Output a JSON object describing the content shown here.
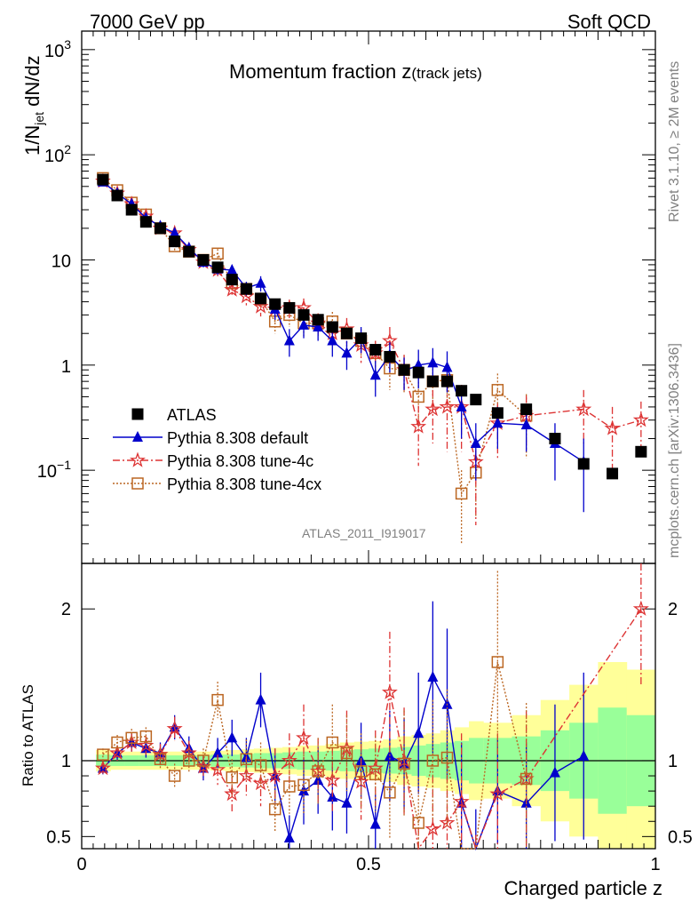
{
  "header": {
    "left": "7000 GeV pp",
    "right": "Soft QCD"
  },
  "side_labels": {
    "rivet": "Rivet 3.1.10, ≥ 2M events",
    "mcplots": "mcplots.cern.ch [arXiv:1306.3436]"
  },
  "plot_title": {
    "main": "Momentum fraction z",
    "sub": "(track jets)"
  },
  "analysis_id": "ATLAS_2011_I919017",
  "colors": {
    "atlas": "#000000",
    "default": "#0000cc",
    "tune4c": "#dd3333",
    "tune4cx": "#bb6622",
    "band_inner": "#99ff99",
    "band_outer": "#ffff99"
  },
  "chart_data": [
    {
      "type": "scatter",
      "name": "main",
      "ylabel": "1/N_jet dN/dz",
      "yscale": "log",
      "ylim": [
        0.013,
        1500
      ],
      "xlim": [
        0,
        1
      ],
      "y_ticks": [
        "10^-1",
        "1",
        "10",
        "10^2",
        "10^3"
      ],
      "legend_position": "bottom-left",
      "series": [
        {
          "name": "ATLAS",
          "marker": "square",
          "x": [
            0.037,
            0.062,
            0.087,
            0.112,
            0.137,
            0.162,
            0.187,
            0.212,
            0.237,
            0.262,
            0.287,
            0.312,
            0.337,
            0.362,
            0.387,
            0.412,
            0.437,
            0.462,
            0.487,
            0.512,
            0.537,
            0.562,
            0.587,
            0.612,
            0.637,
            0.662,
            0.687,
            0.725,
            0.775,
            0.825,
            0.875,
            0.925,
            0.975
          ],
          "y": [
            58,
            41,
            30,
            23,
            20,
            15,
            12,
            10,
            8.5,
            6.5,
            5.3,
            4.3,
            3.8,
            3.5,
            3.0,
            2.7,
            2.3,
            2.0,
            1.8,
            1.4,
            1.2,
            0.9,
            0.85,
            0.7,
            0.7,
            0.57,
            0.47,
            0.35,
            0.38,
            0.2,
            0.115,
            0.093,
            0.15
          ]
        },
        {
          "name": "Pythia 8.308 default",
          "marker": "triangle",
          "x": [
            0.037,
            0.062,
            0.087,
            0.112,
            0.137,
            0.162,
            0.187,
            0.212,
            0.237,
            0.262,
            0.287,
            0.312,
            0.337,
            0.362,
            0.387,
            0.412,
            0.437,
            0.462,
            0.487,
            0.512,
            0.537,
            0.562,
            0.587,
            0.612,
            0.637,
            0.662,
            0.687,
            0.725,
            0.775,
            0.825,
            0.875
          ],
          "y": [
            55,
            43,
            34,
            25,
            21,
            18,
            13,
            9.5,
            8.2,
            8.0,
            5.4,
            6.0,
            3.4,
            1.7,
            2.4,
            2.3,
            1.7,
            1.3,
            1.8,
            0.8,
            1.25,
            0.88,
            1.0,
            1.05,
            0.95,
            0.4,
            0.18,
            0.28,
            0.27,
            0.18,
            0.12
          ],
          "err": [
            3,
            2,
            2,
            1.5,
            1.5,
            1.5,
            1,
            1,
            1,
            1,
            0.8,
            1,
            0.7,
            0.5,
            0.6,
            0.6,
            0.5,
            0.4,
            0.5,
            0.3,
            0.4,
            0.3,
            0.4,
            0.4,
            0.4,
            0.2,
            0.1,
            0.12,
            0.12,
            0.1,
            0.08
          ]
        },
        {
          "name": "Pythia 8.308 tune-4c",
          "marker": "star",
          "x": [
            0.037,
            0.062,
            0.087,
            0.112,
            0.137,
            0.162,
            0.187,
            0.212,
            0.237,
            0.262,
            0.287,
            0.312,
            0.337,
            0.362,
            0.387,
            0.412,
            0.437,
            0.462,
            0.487,
            0.512,
            0.537,
            0.562,
            0.587,
            0.612,
            0.637,
            0.662,
            0.687,
            0.725,
            0.775,
            0.875,
            0.925,
            0.975
          ],
          "y": [
            56,
            43,
            34,
            26,
            20,
            18,
            12.5,
            9.5,
            8.0,
            5.2,
            4.5,
            3.6,
            3.4,
            3.5,
            3.5,
            2.5,
            2.0,
            2.2,
            1.55,
            1.3,
            1.7,
            0.9,
            0.26,
            0.38,
            0.4,
            0.4,
            0.12,
            0.28,
            0.33,
            0.38,
            0.25,
            0.3
          ],
          "err": [
            3,
            2,
            2,
            1.5,
            1.5,
            1.5,
            1,
            1,
            1,
            0.8,
            0.8,
            0.7,
            0.7,
            0.7,
            0.8,
            0.6,
            0.5,
            0.6,
            0.5,
            0.4,
            0.6,
            0.35,
            0.15,
            0.2,
            0.25,
            0.25,
            0.09,
            0.15,
            0.18,
            0.2,
            0.15,
            0.15
          ]
        },
        {
          "name": "Pythia 8.308 tune-4cx",
          "marker": "open-square",
          "x": [
            0.037,
            0.062,
            0.087,
            0.112,
            0.137,
            0.162,
            0.187,
            0.212,
            0.237,
            0.262,
            0.287,
            0.312,
            0.337,
            0.362,
            0.387,
            0.412,
            0.437,
            0.462,
            0.487,
            0.512,
            0.537,
            0.562,
            0.587,
            0.612,
            0.637,
            0.662,
            0.687,
            0.725,
            0.775
          ],
          "y": [
            60,
            46,
            35,
            27,
            20,
            13.5,
            12,
            10,
            11.5,
            6.0,
            5.3,
            4.2,
            2.6,
            3.0,
            2.5,
            2.5,
            2.6,
            2.0,
            1.7,
            1.3,
            0.93,
            0.9,
            0.5,
            0.7,
            0.72,
            0.06,
            0.095,
            0.58,
            0.33
          ],
          "err": [
            3,
            2,
            2,
            1.5,
            1.5,
            1.5,
            1,
            1,
            1.2,
            0.8,
            0.8,
            0.7,
            0.6,
            0.7,
            0.6,
            0.6,
            0.6,
            0.5,
            0.5,
            0.4,
            0.35,
            0.35,
            0.25,
            0.3,
            0.3,
            0.04,
            0.06,
            0.25,
            0.2
          ]
        }
      ]
    },
    {
      "type": "line",
      "name": "ratio",
      "ylabel": "Ratio to ATLAS",
      "xlabel": "Charged particle z",
      "xlim": [
        0,
        1
      ],
      "ylim": [
        0.42,
        2.3
      ],
      "y_ticks": [
        "0.5",
        "1",
        "2"
      ],
      "x_ticks": [
        "0",
        "0.5",
        "1"
      ],
      "band_x_edges": [
        0.025,
        0.05,
        0.075,
        0.1,
        0.125,
        0.15,
        0.175,
        0.2,
        0.225,
        0.25,
        0.275,
        0.3,
        0.325,
        0.35,
        0.375,
        0.4,
        0.425,
        0.45,
        0.475,
        0.5,
        0.525,
        0.55,
        0.575,
        0.6,
        0.625,
        0.65,
        0.675,
        0.7,
        0.75,
        0.8,
        0.85,
        0.9,
        0.95,
        1.0
      ],
      "band_inner": [
        0.04,
        0.035,
        0.035,
        0.035,
        0.035,
        0.035,
        0.035,
        0.035,
        0.04,
        0.04,
        0.045,
        0.05,
        0.05,
        0.055,
        0.06,
        0.06,
        0.065,
        0.07,
        0.075,
        0.08,
        0.085,
        0.09,
        0.1,
        0.11,
        0.12,
        0.13,
        0.15,
        0.15,
        0.16,
        0.2,
        0.25,
        0.35,
        0.3
      ],
      "band_outer": [
        0.07,
        0.06,
        0.06,
        0.06,
        0.06,
        0.06,
        0.06,
        0.06,
        0.065,
        0.07,
        0.075,
        0.08,
        0.085,
        0.09,
        0.1,
        0.1,
        0.11,
        0.12,
        0.125,
        0.13,
        0.14,
        0.16,
        0.17,
        0.18,
        0.2,
        0.22,
        0.26,
        0.25,
        0.3,
        0.4,
        0.5,
        0.65,
        0.6
      ],
      "series": [
        {
          "name": "Pythia 8.308 default",
          "x": [
            0.037,
            0.062,
            0.087,
            0.112,
            0.137,
            0.162,
            0.187,
            0.212,
            0.237,
            0.262,
            0.287,
            0.312,
            0.337,
            0.362,
            0.387,
            0.412,
            0.437,
            0.462,
            0.487,
            0.512,
            0.537,
            0.562,
            0.587,
            0.612,
            0.637,
            0.662,
            0.687,
            0.725,
            0.775,
            0.825,
            0.875
          ],
          "y": [
            0.95,
            1.05,
            1.12,
            1.08,
            1.05,
            1.22,
            1.08,
            0.95,
            1.05,
            1.15,
            1.02,
            1.4,
            0.9,
            0.49,
            0.8,
            0.87,
            0.76,
            0.72,
            1.0,
            0.58,
            1.03,
            0.98,
            1.18,
            1.55,
            1.37,
            0.72,
            0.38,
            0.8,
            0.72,
            0.92,
            1.03
          ],
          "err": [
            0.04,
            0.05,
            0.06,
            0.06,
            0.07,
            0.08,
            0.08,
            0.08,
            0.1,
            0.12,
            0.13,
            0.18,
            0.18,
            0.15,
            0.22,
            0.22,
            0.22,
            0.2,
            0.25,
            0.2,
            0.3,
            0.3,
            0.4,
            0.5,
            0.5,
            0.4,
            0.3,
            0.35,
            0.4,
            0.45,
            0.55
          ]
        },
        {
          "name": "Pythia 8.308 tune-4c",
          "x": [
            0.037,
            0.062,
            0.087,
            0.112,
            0.137,
            0.162,
            0.187,
            0.212,
            0.237,
            0.262,
            0.287,
            0.312,
            0.337,
            0.362,
            0.387,
            0.412,
            0.437,
            0.462,
            0.487,
            0.512,
            0.537,
            0.562,
            0.587,
            0.612,
            0.637,
            0.662,
            0.687,
            0.725,
            0.775,
            0.975
          ],
          "y": [
            0.95,
            1.05,
            1.12,
            1.1,
            1.04,
            1.21,
            1.05,
            0.96,
            0.94,
            0.78,
            0.9,
            0.85,
            0.9,
            1.0,
            1.15,
            0.93,
            0.87,
            1.08,
            0.86,
            0.95,
            1.45,
            1.0,
            0.31,
            0.55,
            0.59,
            0.73,
            0.26,
            0.78,
            0.88,
            2.0
          ],
          "err": [
            0.04,
            0.05,
            0.06,
            0.06,
            0.07,
            0.08,
            0.08,
            0.08,
            0.1,
            0.12,
            0.13,
            0.15,
            0.18,
            0.18,
            0.22,
            0.22,
            0.22,
            0.25,
            0.25,
            0.25,
            0.4,
            0.35,
            0.25,
            0.35,
            0.4,
            0.45,
            0.25,
            0.4,
            0.45,
            0.5
          ]
        },
        {
          "name": "Pythia 8.308 tune-4cx",
          "x": [
            0.037,
            0.062,
            0.087,
            0.112,
            0.137,
            0.162,
            0.187,
            0.212,
            0.237,
            0.262,
            0.287,
            0.312,
            0.337,
            0.362,
            0.387,
            0.412,
            0.437,
            0.462,
            0.487,
            0.512,
            0.537,
            0.562,
            0.587,
            0.612,
            0.637,
            0.662,
            0.687,
            0.725,
            0.775
          ],
          "y": [
            1.04,
            1.12,
            1.15,
            1.16,
            1.01,
            0.9,
            1.0,
            1.0,
            1.4,
            0.89,
            1.01,
            0.97,
            0.68,
            0.83,
            0.84,
            0.93,
            1.12,
            1.05,
            0.93,
            0.91,
            0.79,
            0.98,
            0.59,
            1.0,
            1.02,
            0.1,
            0.2,
            1.65,
            0.88
          ],
          "err": [
            0.04,
            0.05,
            0.06,
            0.06,
            0.07,
            0.08,
            0.08,
            0.08,
            0.12,
            0.12,
            0.13,
            0.15,
            0.15,
            0.18,
            0.2,
            0.22,
            0.25,
            0.25,
            0.25,
            0.25,
            0.3,
            0.35,
            0.3,
            0.4,
            0.45,
            0.1,
            0.15,
            0.6,
            0.5
          ]
        }
      ]
    }
  ]
}
